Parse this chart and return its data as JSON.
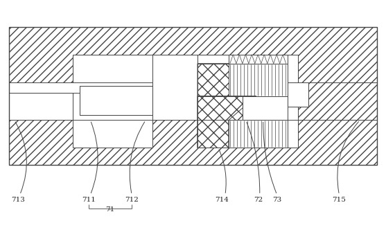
{
  "fig_width": 5.57,
  "fig_height": 3.32,
  "dpi": 100,
  "line_color": "#444444",
  "bg_color": "#ffffff",
  "hatch_diag": "///",
  "hatch_cross": "xx"
}
